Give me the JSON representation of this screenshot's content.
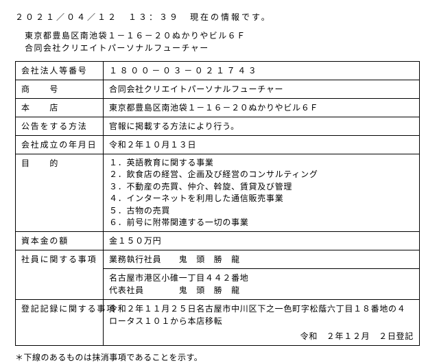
{
  "timestamp": "２０２１／０４／１２　１３：３９　現在の情報です。",
  "header_address": "東京都豊島区南池袋１－１６－２０ぬかりやビル６Ｆ",
  "header_company": "合同会社クリエイトパーソナルフューチャー",
  "rows": {
    "corp_no_label": "会社法人等番号",
    "corp_no_value": "１８００－０３－０２１７４３",
    "trade_name_label": "商　　号",
    "trade_name_value": "合同会社クリエイトパーソナルフューチャー",
    "head_office_label": "本　　店",
    "head_office_value": "東京都豊島区南池袋１－１６－２０ぬかりやビル６Ｆ",
    "notice_label": "公告をする方法",
    "notice_value": "官報に掲載する方法により行う。",
    "est_label": "会社成立の年月日",
    "est_value": "令和２年１０月１３日",
    "purpose_label": "目　　的",
    "purposes": [
      "英語教育に関する事業",
      "飲食店の経営、企画及び経営のコンサルティング",
      "不動産の売買、仲介、斡旋、賃貸及び管理",
      "インターネットを利用した通信販売事業",
      "古物の売買",
      "前号に附帯関連する一切の事業"
    ],
    "capital_label": "資本金の額",
    "capital_value": "金１５０万円",
    "members_label": "社員に関する事項",
    "members_line1": "業務執行社員　　鬼　頭　勝　龍",
    "members_line2": "名古屋市港区小碓一丁目４４２番地",
    "members_line3": "代表社員　　　　鬼　頭　勝　龍",
    "record_label": "登記記録に関する事項",
    "record_value": "令和２年１１月２５日名古屋市中川区下之一色町字松蔭六丁目１８番地の４ロータス１０１から本店移転",
    "record_date": "令和　２年１２月　２日登記"
  },
  "footnote": "＊下線のあるものは抹消事項であることを示す。"
}
